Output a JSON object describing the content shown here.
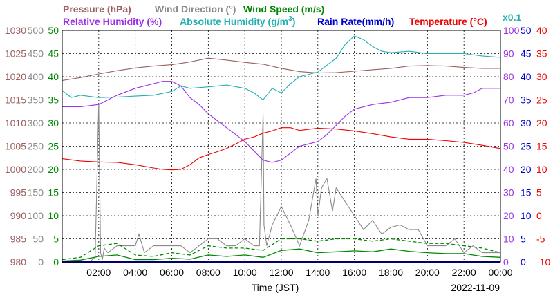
{
  "chart_data": {
    "type": "line",
    "date": "2022-11-09",
    "x_axis": {
      "label": "Time (JST)",
      "range_hours": [
        0,
        24
      ],
      "ticks": [
        "02:00",
        "04:00",
        "06:00",
        "08:00",
        "10:00",
        "12:00",
        "14:00",
        "16:00",
        "18:00",
        "20:00",
        "22:00",
        "00:00"
      ]
    },
    "grid": true,
    "legend": {
      "pressure": "Pressure (hPa)",
      "wind_direction": "Wind Direction (°)",
      "wind_speed": "Wind Speed (m/s)",
      "relative_humidity": "Relative Humidity (%)",
      "absolute_humidity_prefix": "Absolute Humidity (g/m",
      "absolute_humidity_sup": "3",
      "absolute_humidity_suffix": ")",
      "rain_rate": "Rain Rate(mm/h)",
      "temperature": "Temperature (°C)",
      "multiplier": "x0.1"
    },
    "axes": {
      "pressure": {
        "range": [
          980,
          1030
        ],
        "color": "#9a6060",
        "ticks": [
          "980",
          "985",
          "990",
          "995",
          "1000",
          "1005",
          "1010",
          "1015",
          "1020",
          "1025",
          "1030"
        ]
      },
      "wind_direction": {
        "range": [
          0,
          500
        ],
        "color": "#8a8a8a",
        "ticks": [
          "0",
          "50",
          "100",
          "150",
          "200",
          "250",
          "300",
          "350",
          "400",
          "450",
          "500"
        ]
      },
      "wind_speed": {
        "range": [
          0,
          50
        ],
        "color": "#008800",
        "ticks": [
          "0",
          "5",
          "10",
          "15",
          "20",
          "25",
          "30",
          "35",
          "40",
          "45",
          "50"
        ]
      },
      "relative_humidity": {
        "range": [
          0,
          100
        ],
        "color": "#9a30e6",
        "ticks": [
          "0",
          "10",
          "20",
          "30",
          "40",
          "50",
          "60",
          "70",
          "80",
          "90",
          "100"
        ]
      },
      "rain_rate": {
        "range": [
          0,
          50
        ],
        "color": "#0000cc",
        "ticks": [
          "0",
          "5",
          "10",
          "15",
          "20",
          "25",
          "30",
          "35",
          "40",
          "45",
          "50"
        ]
      },
      "temperature": {
        "range": [
          -10,
          40
        ],
        "color": "#ee0000",
        "ticks": [
          "-10",
          "-5",
          "0",
          "5",
          "10",
          "15",
          "20",
          "25",
          "30",
          "35",
          "40"
        ]
      },
      "absolute_humidity": {
        "color": "#20b0b0"
      }
    },
    "series": [
      {
        "key": "pressure",
        "name": "Pressure (hPa)",
        "axis": "pressure",
        "color": "#9a6060",
        "x": [
          0,
          1,
          2,
          3,
          4,
          5,
          6,
          7,
          8,
          9,
          10,
          11,
          12,
          13,
          14,
          15,
          16,
          17,
          18,
          19,
          20,
          21,
          22,
          23,
          24
        ],
        "y": [
          1019.2,
          1019.8,
          1020.6,
          1021.3,
          1021.9,
          1022.3,
          1022.6,
          1023.2,
          1024.0,
          1023.6,
          1023.1,
          1022.7,
          1021.8,
          1021.1,
          1020.8,
          1020.9,
          1021.2,
          1021.5,
          1021.8,
          1022.3,
          1022.4,
          1022.3,
          1022.0,
          1021.8,
          1021.8
        ]
      },
      {
        "key": "wind_direction",
        "name": "Wind Direction (°)",
        "axis": "wind_direction",
        "color": "#8a8a8a",
        "x": [
          0,
          1.5,
          1.8,
          2.0,
          2.1,
          2.2,
          2.3,
          2.5,
          3.0,
          3.5,
          4.0,
          4.2,
          4.5,
          5.0,
          5.5,
          6.0,
          6.5,
          7.0,
          7.5,
          8.0,
          8.5,
          9.0,
          9.5,
          10.0,
          10.5,
          10.8,
          11.0,
          11.05,
          11.2,
          11.5,
          12.0,
          12.5,
          13.0,
          13.5,
          13.9,
          14.0,
          14.2,
          14.5,
          14.8,
          15.0,
          15.5,
          16.0,
          16.5,
          17.0,
          17.5,
          18.0,
          18.5,
          19.0,
          19.5,
          20.0,
          20.5,
          21.0,
          21.5,
          22.0,
          22.5,
          23.0,
          23.5,
          24.0
        ],
        "y": [
          0,
          0,
          10,
          340,
          20,
          5,
          30,
          20,
          35,
          35,
          35,
          60,
          20,
          35,
          35,
          35,
          35,
          20,
          35,
          50,
          50,
          35,
          35,
          50,
          35,
          35,
          320,
          80,
          35,
          80,
          120,
          80,
          35,
          90,
          180,
          100,
          160,
          180,
          110,
          160,
          130,
          100,
          70,
          90,
          60,
          75,
          80,
          70,
          70,
          35,
          35,
          35,
          50,
          20,
          35,
          20,
          20,
          20
        ]
      },
      {
        "key": "wind_speed_solid",
        "name": "Wind Speed (m/s)",
        "axis": "wind_speed",
        "color": "#008800",
        "x": [
          0,
          1,
          2,
          3,
          4,
          5,
          6,
          7,
          8,
          9,
          10,
          11,
          12,
          13,
          14,
          15,
          16,
          17,
          18,
          19,
          20,
          21,
          22,
          23,
          24
        ],
        "y": [
          0.2,
          0.4,
          1.2,
          1.5,
          0.5,
          0.5,
          0.8,
          0.6,
          1.5,
          1.2,
          1.5,
          1.0,
          2.5,
          2.8,
          2.0,
          2.2,
          2.4,
          2.2,
          2.8,
          2.3,
          2.0,
          1.8,
          1.8,
          1.2,
          1.0
        ]
      },
      {
        "key": "wind_speed_dashed",
        "name": "Wind Speed (m/s)",
        "axis": "wind_speed",
        "color": "#008800",
        "x": [
          0,
          1,
          2,
          3,
          4,
          5,
          6,
          7,
          8,
          9,
          10,
          11,
          12,
          13,
          14,
          15,
          16,
          17,
          18,
          19,
          20,
          21,
          22,
          23,
          24
        ],
        "y": [
          0.5,
          1.0,
          3.5,
          4.0,
          1.5,
          1.2,
          2.0,
          1.5,
          3.5,
          3.0,
          3.0,
          2.5,
          5.0,
          5.0,
          4.5,
          5.0,
          5.0,
          4.5,
          5.0,
          4.5,
          4.0,
          4.0,
          3.5,
          3.0,
          2.0
        ]
      },
      {
        "key": "relative_humidity",
        "name": "Relative Humidity (%)",
        "axis": "relative_humidity",
        "color": "#9a30e6",
        "x": [
          0,
          1,
          2,
          2.5,
          3,
          4,
          5,
          5.5,
          6,
          6.5,
          7,
          7.5,
          8,
          8.5,
          9,
          9.5,
          10,
          10.5,
          11,
          11.5,
          12,
          12.5,
          13,
          13.5,
          14,
          14.5,
          15,
          15.5,
          16,
          17,
          18,
          19,
          20,
          21,
          22,
          22.5,
          23,
          23.5,
          24
        ],
        "y": [
          67,
          67,
          68,
          70,
          72,
          75,
          77,
          78,
          78,
          76,
          71,
          68,
          64,
          61,
          58,
          55,
          52,
          48,
          44,
          43,
          44,
          47,
          50,
          51,
          52,
          55,
          59,
          63,
          66,
          68,
          69,
          71,
          71,
          72,
          72,
          73,
          75,
          75,
          75
        ]
      },
      {
        "key": "absolute_humidity",
        "name": "Absolute Humidity (g/m3)",
        "axis": "wind_speed",
        "color": "#20b0b0",
        "x": [
          0,
          0.5,
          1,
          2,
          3,
          4,
          5,
          6,
          6.5,
          7,
          8,
          9,
          10,
          10.5,
          11,
          11.5,
          12,
          12.5,
          13,
          13.5,
          14,
          14.5,
          15,
          15.5,
          16,
          16.5,
          17,
          17.5,
          18,
          19,
          20,
          21,
          22,
          23,
          24
        ],
        "y": [
          37.0,
          35.5,
          36.0,
          35.5,
          35.6,
          35.8,
          36.0,
          36.8,
          38.0,
          37.5,
          37.8,
          38.2,
          37.5,
          36.5,
          35.0,
          37.5,
          36.5,
          38.5,
          40.0,
          40.5,
          41.0,
          42.5,
          44.0,
          47.0,
          48.8,
          48.0,
          46.5,
          45.5,
          45.2,
          45.5,
          45.0,
          45.0,
          45.0,
          44.5,
          44.2
        ]
      },
      {
        "key": "temperature",
        "name": "Temperature (°C)",
        "axis": "temperature",
        "color": "#ee0000",
        "x": [
          0,
          1,
          2,
          3,
          4,
          5,
          5.5,
          6,
          6.5,
          7,
          7.5,
          8,
          8.5,
          9,
          9.5,
          10,
          10.5,
          11,
          11.5,
          12,
          12.5,
          13,
          14,
          15,
          16,
          17,
          18,
          19,
          20,
          21,
          22,
          23,
          24
        ],
        "y": [
          12.3,
          11.8,
          11.6,
          11.5,
          11.0,
          10.3,
          10.0,
          9.9,
          10.0,
          11.0,
          12.5,
          13.2,
          13.8,
          14.5,
          15.5,
          16.5,
          17.0,
          17.8,
          18.3,
          19.0,
          19.0,
          18.4,
          18.9,
          18.7,
          18.3,
          17.7,
          17.0,
          16.5,
          16.5,
          16.2,
          15.8,
          15.2,
          14.5
        ]
      },
      {
        "key": "rain_rate",
        "name": "Rain Rate(mm/h)",
        "axis": "rain_rate",
        "color": "#0000cc",
        "x": [
          0,
          24
        ],
        "y": [
          0,
          0
        ]
      }
    ]
  }
}
